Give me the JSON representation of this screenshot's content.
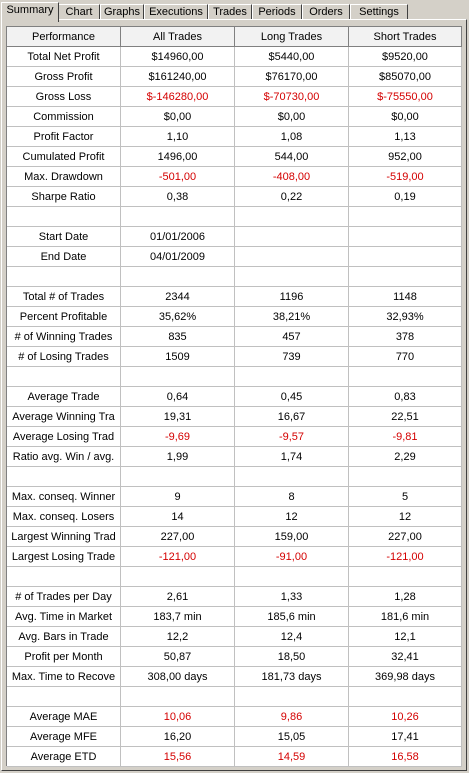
{
  "tabs": [
    "Summary",
    "Chart",
    "Graphs",
    "Executions",
    "Trades",
    "Periods",
    "Orders",
    "Settings"
  ],
  "active_tab": 0,
  "table": {
    "header": [
      "Performance",
      "All Trades",
      "Long Trades",
      "Short Trades"
    ],
    "negative_color": "#d40000",
    "rows": [
      {
        "cells": [
          "Total Net Profit",
          "$14960,00",
          "$5440,00",
          "$9520,00"
        ]
      },
      {
        "cells": [
          "Gross Profit",
          "$161240,00",
          "$76170,00",
          "$85070,00"
        ]
      },
      {
        "cells": [
          "Gross Loss",
          "$-146280,00",
          "$-70730,00",
          "$-75550,00"
        ],
        "negative": true
      },
      {
        "cells": [
          "Commission",
          "$0,00",
          "$0,00",
          "$0,00"
        ]
      },
      {
        "cells": [
          "Profit Factor",
          "1,10",
          "1,08",
          "1,13"
        ]
      },
      {
        "cells": [
          "Cumulated Profit",
          "1496,00",
          "544,00",
          "952,00"
        ]
      },
      {
        "cells": [
          "Max. Drawdown",
          "-501,00",
          "-408,00",
          "-519,00"
        ],
        "negative": true
      },
      {
        "cells": [
          "Sharpe Ratio",
          "0,38",
          "0,22",
          "0,19"
        ]
      },
      null,
      {
        "cells": [
          "Start Date",
          "01/01/2006",
          null,
          null
        ]
      },
      {
        "cells": [
          "End Date",
          "04/01/2009",
          null,
          null
        ]
      },
      null,
      {
        "cells": [
          "Total # of Trades",
          "2344",
          "1196",
          "1148"
        ]
      },
      {
        "cells": [
          "Percent Profitable",
          "35,62%",
          "38,21%",
          "32,93%"
        ]
      },
      {
        "cells": [
          "# of Winning Trades",
          "835",
          "457",
          "378"
        ]
      },
      {
        "cells": [
          "# of Losing Trades",
          "1509",
          "739",
          "770"
        ]
      },
      null,
      {
        "cells": [
          "Average Trade",
          "0,64",
          "0,45",
          "0,83"
        ]
      },
      {
        "cells": [
          "Average Winning Tra",
          "19,31",
          "16,67",
          "22,51"
        ]
      },
      {
        "cells": [
          "Average Losing Trad",
          "-9,69",
          "-9,57",
          "-9,81"
        ],
        "negative": true
      },
      {
        "cells": [
          "Ratio avg. Win / avg.",
          "1,99",
          "1,74",
          "2,29"
        ]
      },
      null,
      {
        "cells": [
          "Max. conseq. Winner",
          "9",
          "8",
          "5"
        ]
      },
      {
        "cells": [
          "Max. conseq. Losers",
          "14",
          "12",
          "12"
        ]
      },
      {
        "cells": [
          "Largest Winning Trad",
          "227,00",
          "159,00",
          "227,00"
        ]
      },
      {
        "cells": [
          "Largest Losing Trade",
          "-121,00",
          "-91,00",
          "-121,00"
        ],
        "negative": true
      },
      null,
      {
        "cells": [
          "# of Trades per Day",
          "2,61",
          "1,33",
          "1,28"
        ]
      },
      {
        "cells": [
          "Avg. Time in Market",
          "183,7 min",
          "185,6 min",
          "181,6 min"
        ]
      },
      {
        "cells": [
          "Avg. Bars in Trade",
          "12,2",
          "12,4",
          "12,1"
        ]
      },
      {
        "cells": [
          "Profit per Month",
          "50,87",
          "18,50",
          "32,41"
        ]
      },
      {
        "cells": [
          "Max. Time to Recove",
          "308,00 days",
          "181,73 days",
          "369,98 days"
        ]
      },
      null,
      {
        "cells": [
          "Average MAE",
          "10,06",
          "9,86",
          "10,26"
        ],
        "negative": true
      },
      {
        "cells": [
          "Average MFE",
          "16,20",
          "15,05",
          "17,41"
        ]
      },
      {
        "cells": [
          "Average ETD",
          "15,56",
          "14,59",
          "16,58"
        ],
        "negative": true
      }
    ]
  }
}
